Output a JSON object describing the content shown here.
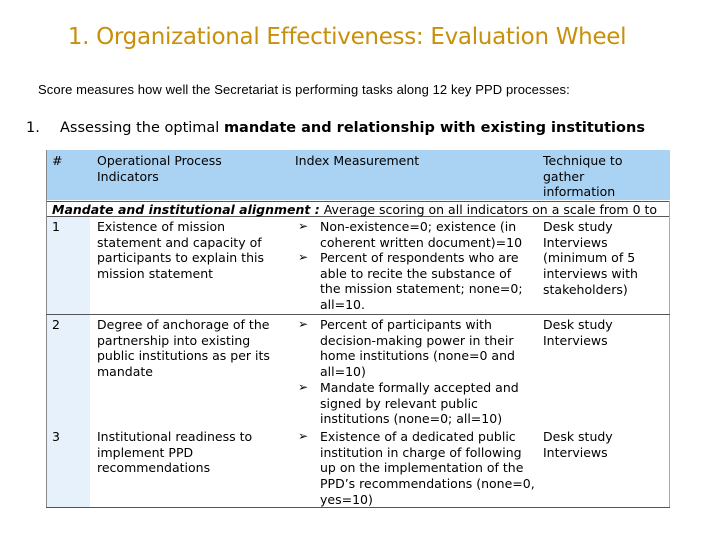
{
  "title": "1. Organizational Effectiveness: Evaluation Wheel",
  "subtitle": "Score measures how well the Secretariat is performing tasks along 12 key PPD processes:",
  "point": {
    "number": "1.",
    "text_plain": "Assessing the optimal",
    "text_bold": "mandate and relationship with existing institutions"
  },
  "table": {
    "headers": {
      "num": "#",
      "indicators": "Operational Process Indicators",
      "index": "Index Measurement",
      "technique": "Technique to gather information"
    },
    "band": {
      "label": "Mandate and institutional alignment :",
      "text": "Average scoring on all indicators on a scale from 0 to 10"
    },
    "rows": [
      {
        "num": "1",
        "indicator": "Existence of mission statement and capacity of participants to explain this mission statement",
        "measures": [
          "Non-existence=0; existence (in coherent written document)=10",
          "Percent of respondents who are able to recite the substance of the mission statement; none=0; all=10."
        ],
        "technique": "Desk study Interviews (minimum of 5 interviews with stakeholders)"
      },
      {
        "num": "2",
        "indicator": "Degree of anchorage of the partnership into existing public institutions as per its mandate",
        "measures": [
          "Percent of participants with decision-making power in their home institutions (none=0 and all=10)",
          "Mandate formally accepted and signed by relevant public institutions (none=0; all=10)"
        ],
        "technique": "Desk study Interviews"
      },
      {
        "num": "3",
        "indicator": "Institutional readiness to implement PPD recommendations",
        "measures": [
          "Existence of a dedicated public institution in charge of following up on the implementation of the PPD’s recommendations (none=0, yes=10)"
        ],
        "technique": "Desk study Interviews"
      }
    ]
  },
  "colors": {
    "title": "#c8900a",
    "header_bg": "#a9d2f3",
    "numcol_bg": "#e6f1fb"
  },
  "icons": {
    "bullet": "arrowhead-bullet-icon"
  }
}
